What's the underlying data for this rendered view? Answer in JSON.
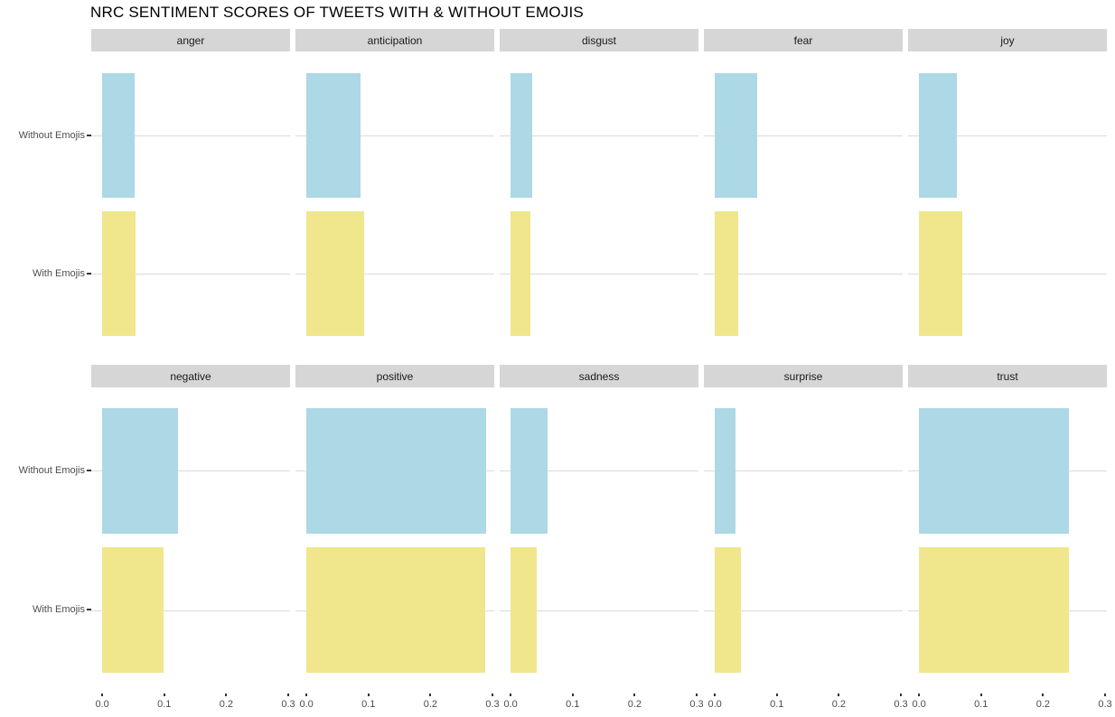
{
  "title": "NRC SENTIMENT SCORES OF TWEETS WITH & WITHOUT EMOJIS",
  "chart_data": {
    "type": "bar",
    "orientation": "horizontal",
    "title": "NRC SENTIMENT SCORES OF TWEETS WITH & WITHOUT EMOJIS",
    "xlabel": "",
    "ylabel": "",
    "xlim": [
      0,
      0.3
    ],
    "x_ticks": [
      "0.0",
      "0.1",
      "0.2",
      "0.3"
    ],
    "grid": "horizontal-major-only",
    "legend": "none",
    "facet_layout": {
      "rows": 2,
      "cols": 5
    },
    "categories": [
      "Without Emojis",
      "With Emojis"
    ],
    "series": [
      {
        "name": "Without Emojis",
        "color": "#ADD8E6"
      },
      {
        "name": "With Emojis",
        "color": "#F0E68C"
      }
    ],
    "facets": [
      {
        "label": "anger",
        "values": [
          0.053,
          0.054
        ]
      },
      {
        "label": "anticipation",
        "values": [
          0.087,
          0.093
        ]
      },
      {
        "label": "disgust",
        "values": [
          0.035,
          0.032
        ]
      },
      {
        "label": "fear",
        "values": [
          0.068,
          0.038
        ]
      },
      {
        "label": "joy",
        "values": [
          0.061,
          0.07
        ]
      },
      {
        "label": "negative",
        "values": [
          0.122,
          0.099
        ]
      },
      {
        "label": "positive",
        "values": [
          0.29,
          0.288
        ]
      },
      {
        "label": "sadness",
        "values": [
          0.06,
          0.042
        ]
      },
      {
        "label": "surprise",
        "values": [
          0.033,
          0.042
        ]
      },
      {
        "label": "trust",
        "values": [
          0.241,
          0.242
        ]
      }
    ],
    "colors": {
      "without": "#ADD8E6",
      "with": "#F0E68C",
      "strip_bg": "#D6D6D6",
      "gridline": "#DBDBDB",
      "axis_text": "#4D4D4D",
      "tick": "#333333"
    }
  }
}
